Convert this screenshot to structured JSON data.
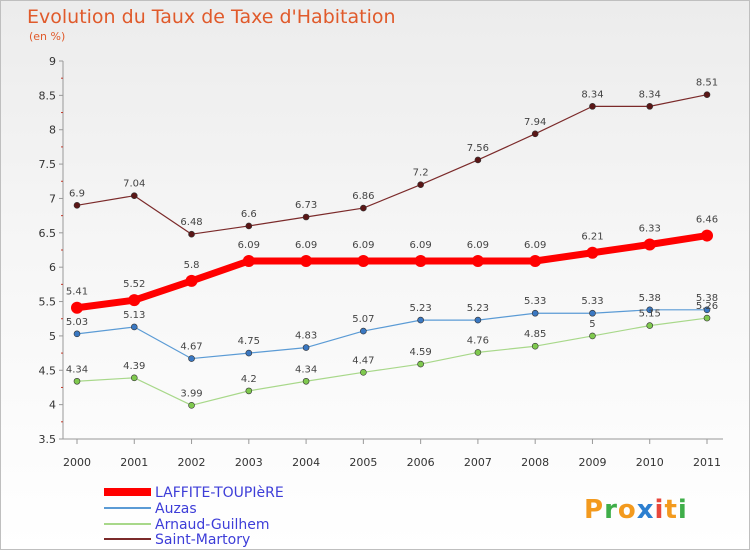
{
  "title": "Evolution du Taux de Taxe d'Habitation",
  "subtitle": "(en %)",
  "brand": {
    "letters": [
      "P",
      "r",
      "o",
      "x",
      "i",
      "t",
      "i"
    ],
    "colors": [
      "#f39a1e",
      "#3fae49",
      "#f39a1e",
      "#2c7fd0",
      "#e8473c",
      "#f39a1e",
      "#3fae49"
    ]
  },
  "chart_data": {
    "type": "line",
    "x": [
      "2000",
      "2001",
      "2002",
      "2003",
      "2004",
      "2005",
      "2006",
      "2007",
      "2008",
      "2009",
      "2010",
      "2011"
    ],
    "ylim": [
      3.5,
      9
    ],
    "yticks": [
      "3.5",
      "4",
      "4.5",
      "5",
      "5.5",
      "6",
      "6.5",
      "7",
      "7.5",
      "8",
      "8.5",
      "9"
    ],
    "grid": false,
    "legend": "bottom-left",
    "series": [
      {
        "name": "Saint-Martory",
        "color": "#7b2a2a",
        "marker": "#5a1616",
        "width": 1.2,
        "values": [
          6.9,
          7.04,
          6.48,
          6.6,
          6.73,
          6.86,
          7.2,
          7.56,
          7.94,
          8.34,
          8.34,
          8.51
        ],
        "labels": [
          "6.9",
          "7.04",
          "6.48",
          "6.6",
          "6.73",
          "6.86",
          "7.2",
          "7.56",
          "7.94",
          "8.34",
          "8.34",
          "8.51"
        ]
      },
      {
        "name": "Auzas",
        "color": "#5b9bd5",
        "marker": "#3a78c2",
        "width": 1.2,
        "values": [
          5.03,
          5.13,
          4.67,
          4.75,
          4.83,
          5.07,
          5.23,
          5.23,
          5.33,
          5.33,
          5.38,
          5.38
        ],
        "labels": [
          "5.03",
          "5.13",
          "4.67",
          "4.75",
          "4.83",
          "5.07",
          "5.23",
          "5.23",
          "5.33",
          "5.33",
          "5.38",
          "5.38"
        ]
      },
      {
        "name": "Arnaud-Guilhem",
        "color": "#a8d88a",
        "marker": "#7fc94e",
        "width": 1.2,
        "values": [
          4.34,
          4.39,
          3.99,
          4.2,
          4.34,
          4.47,
          4.59,
          4.76,
          4.85,
          5.0,
          5.15,
          5.26
        ],
        "labels": [
          "4.34",
          "4.39",
          "3.99",
          "4.2",
          "4.34",
          "4.47",
          "4.59",
          "4.76",
          "4.85",
          "5",
          "5.15",
          "5.26"
        ]
      },
      {
        "name": "LAFFITE-TOUPIèRE",
        "color": "#ff0000",
        "marker": "#ff0000",
        "width": 7,
        "values": [
          5.41,
          5.52,
          5.8,
          6.09,
          6.09,
          6.09,
          6.09,
          6.09,
          6.09,
          6.21,
          6.33,
          6.46
        ],
        "labels": [
          "5.41",
          "5.52",
          "5.8",
          "6.09",
          "6.09",
          "6.09",
          "6.09",
          "6.09",
          "6.09",
          "6.21",
          "6.33",
          "6.46"
        ]
      }
    ],
    "legend_order": [
      "LAFFITE-TOUPIèRE",
      "Auzas",
      "Arnaud-Guilhem",
      "Saint-Martory"
    ]
  }
}
